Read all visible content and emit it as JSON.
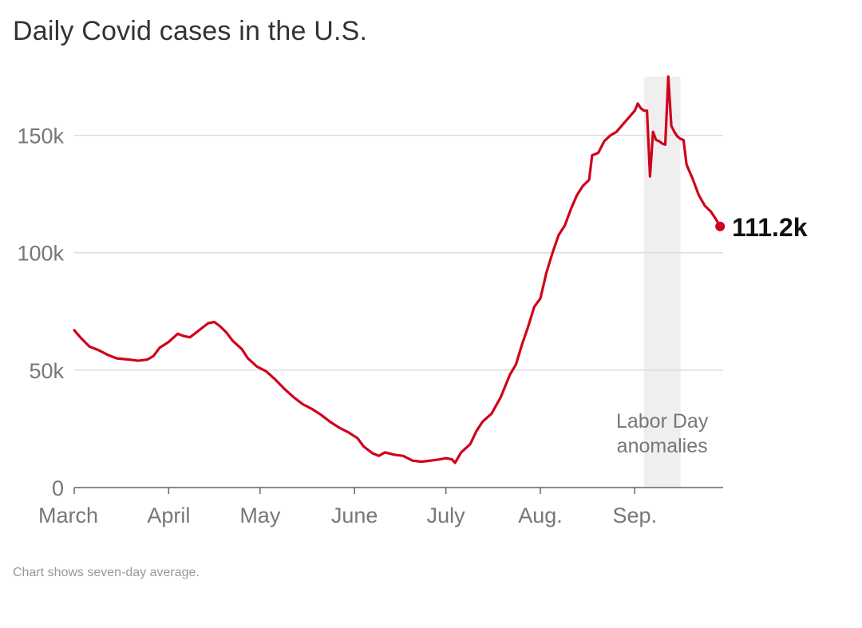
{
  "title": "Daily Covid cases in the U.S.",
  "footnote": "Chart shows seven-day average.",
  "colors": {
    "line": "#d0021b",
    "grid": "#dddddd",
    "shade": "#efefef",
    "axis": "#666666",
    "text": "#777777"
  },
  "chart_data": {
    "type": "line",
    "title": "Daily Covid cases in the U.S.",
    "xlabel": "",
    "ylabel": "",
    "x_axis": "date",
    "x_tick_labels": [
      {
        "label": "March",
        "date": "2021-03-01"
      },
      {
        "label": "April",
        "date": "2021-04-01"
      },
      {
        "label": "May",
        "date": "2021-05-01"
      },
      {
        "label": "June",
        "date": "2021-06-01"
      },
      {
        "label": "July",
        "date": "2021-07-01"
      },
      {
        "label": "Aug.",
        "date": "2021-08-01"
      },
      {
        "label": "Sep.",
        "date": "2021-09-01"
      }
    ],
    "y_ticks": [
      {
        "label": "0",
        "value": 0
      },
      {
        "label": "50k",
        "value": 50000
      },
      {
        "label": "100k",
        "value": 100000
      },
      {
        "label": "150k",
        "value": 150000
      }
    ],
    "xlim": [
      "2021-03-01",
      "2021-09-30"
    ],
    "ylim": [
      0,
      175000
    ],
    "grid": "horizontal",
    "annotation": {
      "label_line1": "Labor Day",
      "label_line2": "anomalies",
      "start": "2021-09-04",
      "end": "2021-09-16"
    },
    "end_label": "111.2k",
    "series": [
      {
        "values": [
          {
            "x": "2021-03-01",
            "y": 67000
          },
          {
            "x": "2021-03-03",
            "y": 64000
          },
          {
            "x": "2021-03-06",
            "y": 60000
          },
          {
            "x": "2021-03-09",
            "y": 58500
          },
          {
            "x": "2021-03-12",
            "y": 56500
          },
          {
            "x": "2021-03-15",
            "y": 55000
          },
          {
            "x": "2021-03-19",
            "y": 54500
          },
          {
            "x": "2021-03-22",
            "y": 54000
          },
          {
            "x": "2021-03-25",
            "y": 54500
          },
          {
            "x": "2021-03-27",
            "y": 56000
          },
          {
            "x": "2021-03-29",
            "y": 59500
          },
          {
            "x": "2021-04-01",
            "y": 62000
          },
          {
            "x": "2021-04-04",
            "y": 65500
          },
          {
            "x": "2021-04-06",
            "y": 64500
          },
          {
            "x": "2021-04-08",
            "y": 64000
          },
          {
            "x": "2021-04-10",
            "y": 66000
          },
          {
            "x": "2021-04-12",
            "y": 68000
          },
          {
            "x": "2021-04-14",
            "y": 70000
          },
          {
            "x": "2021-04-16",
            "y": 70500
          },
          {
            "x": "2021-04-18",
            "y": 68500
          },
          {
            "x": "2021-04-20",
            "y": 66000
          },
          {
            "x": "2021-04-22",
            "y": 62500
          },
          {
            "x": "2021-04-25",
            "y": 59000
          },
          {
            "x": "2021-04-27",
            "y": 55000
          },
          {
            "x": "2021-04-30",
            "y": 51500
          },
          {
            "x": "2021-05-03",
            "y": 49500
          },
          {
            "x": "2021-05-06",
            "y": 46000
          },
          {
            "x": "2021-05-09",
            "y": 42000
          },
          {
            "x": "2021-05-12",
            "y": 38500
          },
          {
            "x": "2021-05-15",
            "y": 35500
          },
          {
            "x": "2021-05-18",
            "y": 33500
          },
          {
            "x": "2021-05-21",
            "y": 31000
          },
          {
            "x": "2021-05-24",
            "y": 28000
          },
          {
            "x": "2021-05-27",
            "y": 25500
          },
          {
            "x": "2021-05-30",
            "y": 23500
          },
          {
            "x": "2021-06-02",
            "y": 21000
          },
          {
            "x": "2021-06-04",
            "y": 17500
          },
          {
            "x": "2021-06-07",
            "y": 14500
          },
          {
            "x": "2021-06-09",
            "y": 13500
          },
          {
            "x": "2021-06-11",
            "y": 15000
          },
          {
            "x": "2021-06-14",
            "y": 14000
          },
          {
            "x": "2021-06-17",
            "y": 13500
          },
          {
            "x": "2021-06-20",
            "y": 11500
          },
          {
            "x": "2021-06-23",
            "y": 11000
          },
          {
            "x": "2021-06-26",
            "y": 11500
          },
          {
            "x": "2021-06-29",
            "y": 12000
          },
          {
            "x": "2021-07-01",
            "y": 12500
          },
          {
            "x": "2021-07-03",
            "y": 12000
          },
          {
            "x": "2021-07-04",
            "y": 10500
          },
          {
            "x": "2021-07-06",
            "y": 15000
          },
          {
            "x": "2021-07-09",
            "y": 18500
          },
          {
            "x": "2021-07-11",
            "y": 24000
          },
          {
            "x": "2021-07-13",
            "y": 28000
          },
          {
            "x": "2021-07-16",
            "y": 31500
          },
          {
            "x": "2021-07-19",
            "y": 38500
          },
          {
            "x": "2021-07-22",
            "y": 48000
          },
          {
            "x": "2021-07-24",
            "y": 52500
          },
          {
            "x": "2021-07-26",
            "y": 61000
          },
          {
            "x": "2021-07-28",
            "y": 68500
          },
          {
            "x": "2021-07-30",
            "y": 77000
          },
          {
            "x": "2021-08-01",
            "y": 80500
          },
          {
            "x": "2021-08-03",
            "y": 91500
          },
          {
            "x": "2021-08-05",
            "y": 100000
          },
          {
            "x": "2021-08-07",
            "y": 107500
          },
          {
            "x": "2021-08-09",
            "y": 111500
          },
          {
            "x": "2021-08-11",
            "y": 118500
          },
          {
            "x": "2021-08-13",
            "y": 124500
          },
          {
            "x": "2021-08-15",
            "y": 128500
          },
          {
            "x": "2021-08-17",
            "y": 131000
          },
          {
            "x": "2021-08-18",
            "y": 141500
          },
          {
            "x": "2021-08-20",
            "y": 142500
          },
          {
            "x": "2021-08-22",
            "y": 147500
          },
          {
            "x": "2021-08-24",
            "y": 150000
          },
          {
            "x": "2021-08-26",
            "y": 151500
          },
          {
            "x": "2021-08-28",
            "y": 154500
          },
          {
            "x": "2021-08-30",
            "y": 157500
          },
          {
            "x": "2021-08-31",
            "y": 159000
          },
          {
            "x": "2021-09-01",
            "y": 160500
          },
          {
            "x": "2021-09-02",
            "y": 163500
          },
          {
            "x": "2021-09-03",
            "y": 161500
          },
          {
            "x": "2021-09-04",
            "y": 160500
          },
          {
            "x": "2021-09-05",
            "y": 160500
          },
          {
            "x": "2021-09-06",
            "y": 132500
          },
          {
            "x": "2021-09-07",
            "y": 151500
          },
          {
            "x": "2021-09-08",
            "y": 148000
          },
          {
            "x": "2021-09-09",
            "y": 147500
          },
          {
            "x": "2021-09-10",
            "y": 146500
          },
          {
            "x": "2021-09-11",
            "y": 146000
          },
          {
            "x": "2021-09-12",
            "y": 175000
          },
          {
            "x": "2021-09-13",
            "y": 154000
          },
          {
            "x": "2021-09-14",
            "y": 151500
          },
          {
            "x": "2021-09-15",
            "y": 149500
          },
          {
            "x": "2021-09-16",
            "y": 148500
          },
          {
            "x": "2021-09-17",
            "y": 148000
          },
          {
            "x": "2021-09-18",
            "y": 137500
          },
          {
            "x": "2021-09-20",
            "y": 131500
          },
          {
            "x": "2021-09-22",
            "y": 124500
          },
          {
            "x": "2021-09-24",
            "y": 120000
          },
          {
            "x": "2021-09-26",
            "y": 117500
          },
          {
            "x": "2021-09-28",
            "y": 113500
          },
          {
            "x": "2021-09-29",
            "y": 111200
          }
        ]
      }
    ]
  }
}
